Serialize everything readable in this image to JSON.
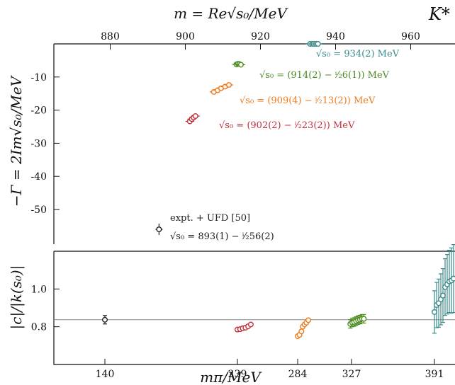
{
  "chart_data": [
    {
      "type": "scatter",
      "panel": "top",
      "title": "K*",
      "top_xlabel": "m = Re√s₀/MeV",
      "ylabel": "−Γ = 2Im√s₀/MeV",
      "top_xlim": [
        865,
        965
      ],
      "ylim": [
        -60,
        0
      ],
      "top_xticks": [
        "880",
        "900",
        "920",
        "940",
        "960"
      ],
      "yticks": [
        "-10",
        "-20",
        "-30",
        "-40",
        "-50"
      ],
      "grid": false,
      "series": [
        {
          "color": "#3a8a8a",
          "mpi": 391,
          "points": [
            [
              933.2,
              0
            ],
            [
              933.8,
              0
            ],
            [
              934.2,
              0
            ],
            [
              934.8,
              0
            ],
            [
              935.3,
              0
            ]
          ],
          "label": "√s₀ = 934(2) MeV"
        },
        {
          "color": "#4a8a1e",
          "mpi": 327,
          "points": [
            [
              913.6,
              -6.2
            ],
            [
              914.0,
              -6.0
            ],
            [
              914.4,
              -6.1
            ],
            [
              914.8,
              -6.3
            ]
          ],
          "label": "√s₀ = (914(2) − ⁱ⁄₂6(1)) MeV"
        },
        {
          "color": "#ef7a1a",
          "mpi": 284,
          "points": [
            [
              907.6,
              -14.5
            ],
            [
              908.6,
              -14.0
            ],
            [
              909.5,
              -13.4
            ],
            [
              910.6,
              -12.9
            ],
            [
              911.6,
              -12.4
            ]
          ],
          "label": "√s₀ = (909(4) − ⁱ⁄₂13(2)) MeV"
        },
        {
          "color": "#c0303a",
          "mpi": 239,
          "points": [
            [
              901.2,
              -23.4
            ],
            [
              901.7,
              -22.7
            ],
            [
              902.2,
              -22.2
            ],
            [
              902.7,
              -21.8
            ]
          ],
          "label": "√s₀ = (902(2) − ⁱ⁄₂23(2)) MeV"
        },
        {
          "color": "#222222",
          "mpi": 140,
          "points": [
            [
              893,
              -56
            ]
          ],
          "label_line1": "expt. + UFD [50]",
          "label": "√s₀ = 893(1) − ⁱ⁄₂56(2)"
        }
      ]
    },
    {
      "type": "scatter",
      "panel": "bottom",
      "xlabel": "mπ/MeV",
      "ylabel": "|c|/|k(s₀)|",
      "xticks": [
        "140",
        "239",
        "284",
        "327",
        "391"
      ],
      "ylim": [
        0.6,
        1.2
      ],
      "yticks": [
        "1.0",
        "0.8"
      ],
      "reference_line": 0.837,
      "series": [
        {
          "color": "#222222",
          "mpi": 140,
          "points": [
            [
              140,
              0.837
            ]
          ]
        },
        {
          "color": "#c0303a",
          "mpi": 239,
          "points": [
            [
              239,
              0.785
            ],
            [
              241,
              0.787
            ],
            [
              243,
              0.792
            ],
            [
              245,
              0.795
            ],
            [
              247,
              0.802
            ],
            [
              249,
              0.812
            ]
          ]
        },
        {
          "color": "#ef7a1a",
          "mpi": 284,
          "points": [
            [
              284,
              0.75
            ],
            [
              285.5,
              0.757
            ],
            [
              287,
              0.775
            ],
            [
              288,
              0.8
            ],
            [
              289.5,
              0.812
            ],
            [
              291,
              0.822
            ],
            [
              292.5,
              0.835
            ]
          ]
        },
        {
          "color": "#4a8a1e",
          "mpi": 327,
          "points": [
            [
              326,
              0.815
            ],
            [
              327.5,
              0.822
            ],
            [
              329,
              0.825
            ],
            [
              330.5,
              0.83
            ],
            [
              332,
              0.835
            ],
            [
              333.5,
              0.838
            ],
            [
              335,
              0.842
            ],
            [
              336.5,
              0.842
            ]
          ]
        },
        {
          "color": "#3a8a8a",
          "mpi": 391,
          "points": [
            [
              391,
              0.878
            ],
            [
              392.5,
              0.915
            ],
            [
              394,
              0.925
            ],
            [
              395.5,
              0.945
            ],
            [
              397,
              0.965
            ],
            [
              398.5,
              1.01
            ],
            [
              400,
              1.025
            ],
            [
              401.5,
              1.04
            ],
            [
              403,
              1.045
            ],
            [
              404.5,
              1.055
            ]
          ]
        }
      ]
    }
  ]
}
